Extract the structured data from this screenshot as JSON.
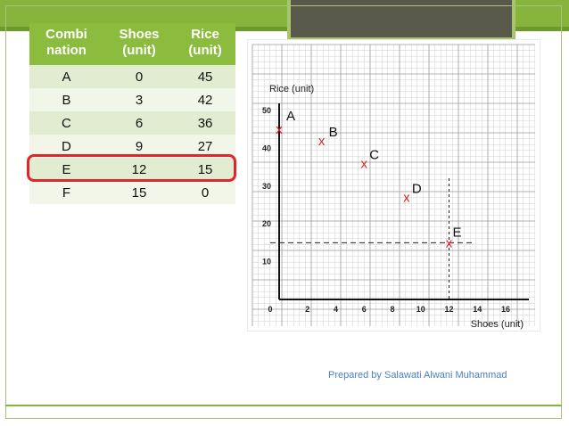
{
  "table": {
    "headers": [
      "Combi\nnation",
      "Shoes\n(unit)",
      "Rice\n(unit)"
    ],
    "header_lines": [
      [
        "Combi",
        "nation"
      ],
      [
        "Shoes",
        "(unit)"
      ],
      [
        "Rice",
        "(unit)"
      ]
    ],
    "rows": [
      [
        "A",
        "0",
        "45"
      ],
      [
        "B",
        "3",
        "42"
      ],
      [
        "C",
        "6",
        "36"
      ],
      [
        "D",
        "9",
        "27"
      ],
      [
        "E",
        "12",
        "15"
      ],
      [
        "F",
        "15",
        "0"
      ]
    ],
    "highlighted_row": "E",
    "header_color": "#8cbc3d",
    "highlight_color": "#e0262c"
  },
  "chart_data": {
    "type": "scatter",
    "title": "",
    "xlabel": "Shoes (unit)",
    "ylabel": "Rice (unit)",
    "xlim": [
      0,
      16
    ],
    "ylim": [
      0,
      50
    ],
    "xticks": [
      "0",
      "2",
      "4",
      "6",
      "8",
      "10",
      "12",
      "14",
      "16"
    ],
    "yticks": [
      "10",
      "20",
      "30",
      "40",
      "50"
    ],
    "grid": true,
    "marker": "x",
    "marker_color": "#d9262c",
    "points": [
      {
        "label": "A",
        "x": 0,
        "y": 45
      },
      {
        "label": "B",
        "x": 3,
        "y": 42
      },
      {
        "label": "C",
        "x": 6,
        "y": 36
      },
      {
        "label": "D",
        "x": 9,
        "y": 27
      },
      {
        "label": "E",
        "x": 12,
        "y": 15
      }
    ],
    "guide_lines": {
      "x": 12,
      "y": 15,
      "style": "dashed"
    }
  },
  "footer": {
    "credit": "Prepared by Salawati Alwani Muhammad"
  }
}
